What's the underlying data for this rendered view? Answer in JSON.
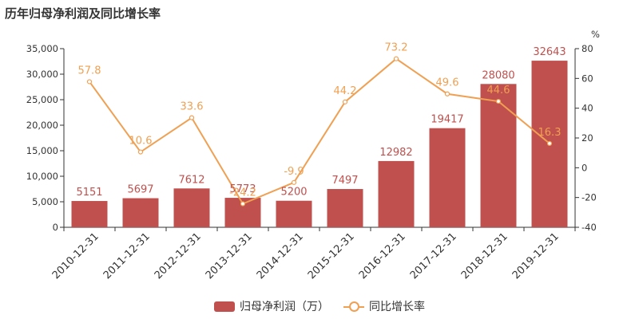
{
  "title": "历年归母净利润及同比增长率",
  "colors": {
    "bar": "#c0504d",
    "line": "#f0a052",
    "axis": "#333333"
  },
  "chart_data": {
    "type": "bar",
    "categories": [
      "2010-12-31",
      "2011-12-31",
      "2012-12-31",
      "2013-12-31",
      "2014-12-31",
      "2015-12-31",
      "2016-12-31",
      "2017-12-31",
      "2018-12-31",
      "2019-12-31"
    ],
    "series": [
      {
        "name": "归母净利润（万）",
        "type": "bar",
        "axis": "left",
        "values": [
          5151,
          5697,
          7612,
          5773,
          5200,
          7497,
          12982,
          19417,
          28080,
          32643
        ],
        "labels": [
          "5151",
          "5697",
          "7612",
          "5773",
          "5200",
          "7497",
          "12982",
          "19417",
          "28080",
          "32643"
        ]
      },
      {
        "name": "同比增长率",
        "type": "line",
        "axis": "right",
        "values": [
          57.8,
          10.6,
          33.6,
          -24.2,
          -9.9,
          44.2,
          73.2,
          49.6,
          44.6,
          16.3
        ],
        "labels": [
          "57.8",
          "10.6",
          "33.6",
          "-24.2",
          "-9.9",
          "44.2",
          "73.2",
          "49.6",
          "44.6",
          "16.3"
        ]
      }
    ],
    "y_left": {
      "range": [
        0,
        35000
      ],
      "ticks": [
        0,
        5000,
        10000,
        15000,
        20000,
        25000,
        30000,
        35000
      ],
      "tick_labels": [
        "0",
        "5,000",
        "10,000",
        "15,000",
        "20,000",
        "25,000",
        "30,000",
        "35,000"
      ]
    },
    "y_right": {
      "unit": "%",
      "range": [
        -40,
        80
      ],
      "ticks": [
        -40,
        -20,
        0,
        20,
        40,
        60,
        80
      ],
      "tick_labels": [
        "-40",
        "-20",
        "0",
        "20",
        "40",
        "60",
        "80"
      ]
    },
    "grid": false,
    "legend_position": "bottom-center"
  }
}
